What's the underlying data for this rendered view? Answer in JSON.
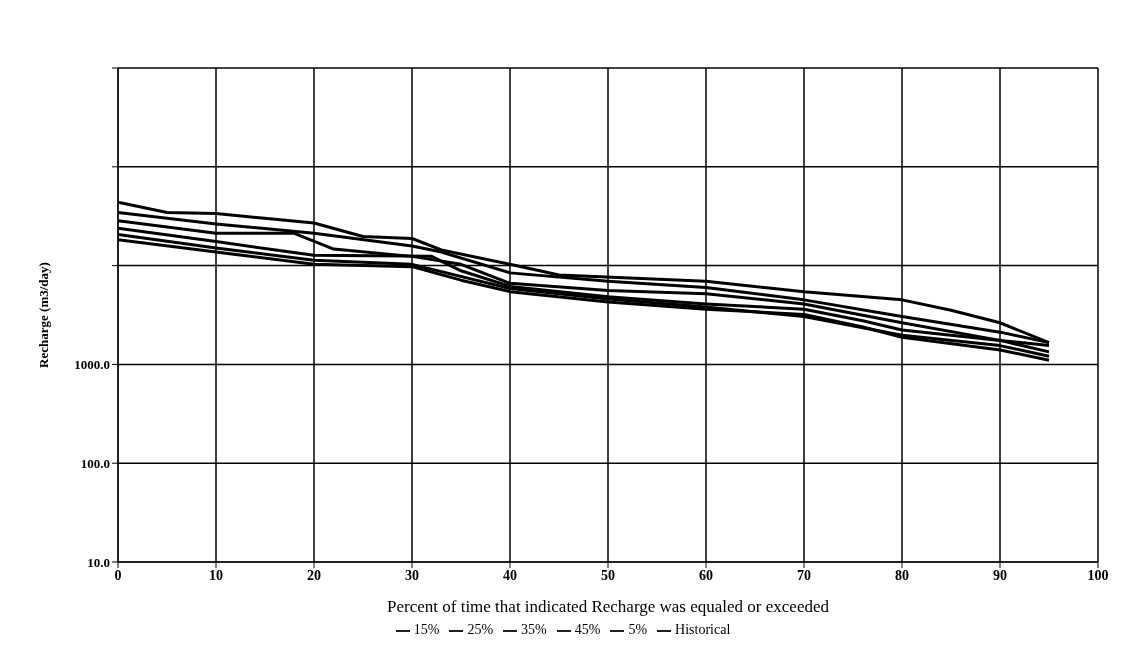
{
  "chart_data": {
    "type": "line",
    "xlabel": "Percent of time that indicated  Recharge was equaled or exceeded",
    "ylabel": "Recharge (m3/day)",
    "log": "y",
    "grid": true,
    "legend": "bottom",
    "marker": "none",
    "line_style": "solid",
    "xlim": [
      0,
      100
    ],
    "xticks": [
      0,
      10,
      20,
      30,
      40,
      50,
      60,
      70,
      80,
      90,
      100
    ],
    "ylim": [
      10,
      1000000
    ],
    "yticks": [
      {
        "value": 10,
        "label": "10.0"
      },
      {
        "value": 100,
        "label": "100.0"
      },
      {
        "value": 1000,
        "label": "1000.0"
      },
      {
        "value": 10000,
        "label": null
      },
      {
        "value": 100000,
        "label": null
      },
      {
        "value": 1000000,
        "label": null
      }
    ],
    "series": [
      {
        "name": "Historical",
        "color": "#000000",
        "x": [
          0,
          5,
          10,
          20,
          25,
          30,
          33,
          40,
          45,
          60,
          70,
          80,
          85,
          90,
          95
        ],
        "values": [
          43900,
          34400,
          33600,
          27000,
          19700,
          18800,
          14400,
          10300,
          8040,
          6950,
          5450,
          4500,
          3530,
          2640,
          1660
        ]
      },
      {
        "name": "5%",
        "color": "#000000",
        "x": [
          0,
          10,
          20,
          30,
          33,
          40,
          50,
          60,
          70,
          80,
          90,
          95
        ],
        "values": [
          34400,
          26400,
          21200,
          15800,
          13700,
          8440,
          6950,
          6010,
          4500,
          3050,
          2120,
          1660
        ]
      },
      {
        "name": "15%",
        "color": "#000000",
        "x": [
          0,
          10,
          18,
          22,
          30,
          35,
          40,
          50,
          60,
          70,
          80,
          90,
          95
        ],
        "values": [
          28400,
          21200,
          21200,
          14700,
          12400,
          10300,
          6630,
          5590,
          5200,
          4080,
          2640,
          1750,
          1550
        ]
      },
      {
        "name": "25%",
        "color": "#000000",
        "x": [
          0,
          10,
          20,
          32,
          35,
          40,
          50,
          60,
          70,
          76,
          80,
          90,
          95
        ],
        "values": [
          23900,
          17500,
          12700,
          12400,
          8860,
          6160,
          4830,
          4080,
          3620,
          2770,
          2230,
          1750,
          1340
        ]
      },
      {
        "name": "35%",
        "color": "#000000",
        "x": [
          0,
          10,
          20,
          30,
          40,
          50,
          60,
          70,
          80,
          90,
          95
        ],
        "values": [
          20700,
          15100,
          11300,
          10300,
          5870,
          4600,
          3800,
          3050,
          1970,
          1550,
          1210
        ]
      },
      {
        "name": "45%",
        "color": "#000000",
        "x": [
          0,
          10,
          20,
          30,
          35,
          40,
          50,
          60,
          70,
          76,
          80,
          90,
          95
        ],
        "values": [
          18300,
          13700,
          10300,
          9760,
          7120,
          5450,
          4280,
          3620,
          3200,
          2390,
          1880,
          1400,
          1100
        ]
      }
    ]
  }
}
